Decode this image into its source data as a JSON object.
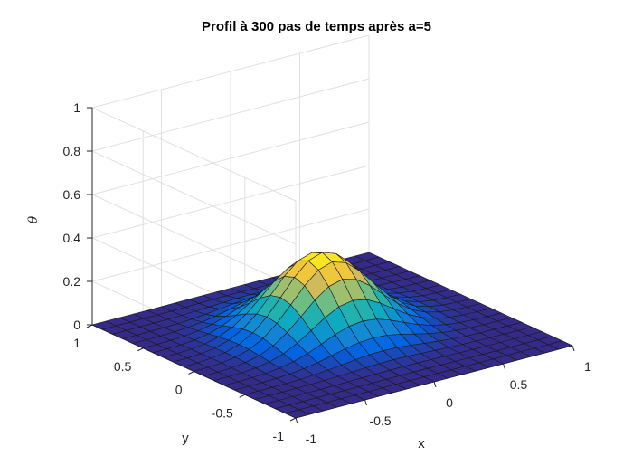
{
  "chart_data": {
    "type": "surface",
    "title": "Profil à  300 pas de temps après a=5",
    "xlabel": "x",
    "ylabel": "y",
    "zlabel": "θ",
    "xlim": [
      -1,
      1
    ],
    "ylim": [
      -1,
      1
    ],
    "zlim": [
      0,
      1
    ],
    "xticks": [
      -1,
      -0.5,
      0,
      0.5,
      1
    ],
    "xtick_labels": [
      "-1",
      "-0.5",
      "0",
      "0.5",
      "1"
    ],
    "yticks": [
      -1,
      -0.5,
      0,
      0.5,
      1
    ],
    "ytick_labels": [
      "-1",
      "-0.5",
      "0",
      "0.5",
      "1"
    ],
    "zticks": [
      0,
      0.2,
      0.4,
      0.6,
      0.8,
      1
    ],
    "ztick_labels": [
      "0",
      "0.2",
      "0.4",
      "0.6",
      "0.8",
      "1"
    ],
    "grid": true,
    "colormap": "parula",
    "colormap_colors": [
      "#352a87",
      "#0363e1",
      "#1485d4",
      "#06a7c6",
      "#38b99e",
      "#92bf73",
      "#d9ba56",
      "#fcce2e",
      "#f9fb0e"
    ],
    "surface": {
      "grid_size": 21,
      "function": "gaussian",
      "amplitude": 0.36,
      "center_x": 0.0,
      "center_y": 0.1,
      "sigma": 0.28
    }
  }
}
